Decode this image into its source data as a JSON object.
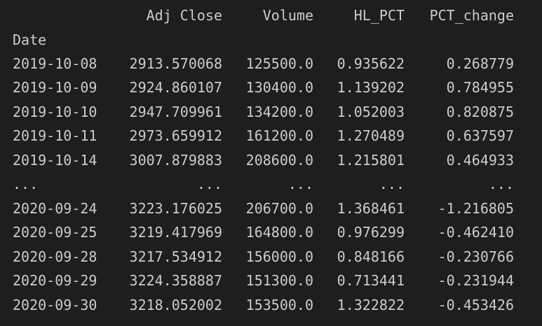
{
  "dataframe": {
    "columns": [
      "Adj Close",
      "Volume",
      "HL_PCT",
      "PCT_change"
    ],
    "index_name": "Date",
    "rows": [
      [
        "2019-10-08",
        "2913.570068",
        "125500.0",
        "0.935622",
        "0.268779"
      ],
      [
        "2019-10-09",
        "2924.860107",
        "130400.0",
        "1.139202",
        "0.784955"
      ],
      [
        "2019-10-10",
        "2947.709961",
        "134200.0",
        "1.052003",
        "0.820875"
      ],
      [
        "2019-10-11",
        "2973.659912",
        "161200.0",
        "1.270489",
        "0.637597"
      ],
      [
        "2019-10-14",
        "3007.879883",
        "208600.0",
        "1.215801",
        "0.464933"
      ],
      [
        "...",
        "...",
        "...",
        "...",
        "..."
      ],
      [
        "2020-09-24",
        "3223.176025",
        "206700.0",
        "1.368461",
        "-1.216805"
      ],
      [
        "2020-09-25",
        "3219.417969",
        "164800.0",
        "0.976299",
        "-0.462410"
      ],
      [
        "2020-09-28",
        "3217.534912",
        "156000.0",
        "0.848166",
        "-0.230766"
      ],
      [
        "2020-09-29",
        "3224.358887",
        "151300.0",
        "0.713441",
        "-0.231944"
      ],
      [
        "2020-09-30",
        "3218.052002",
        "153500.0",
        "1.322822",
        "-0.453426"
      ]
    ]
  }
}
